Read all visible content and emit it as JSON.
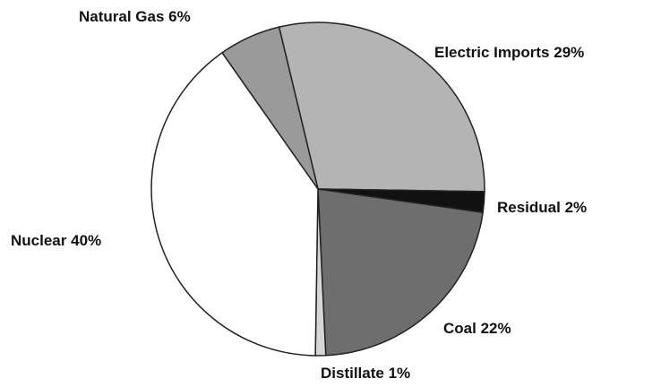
{
  "chart_data": {
    "type": "pie",
    "categories": [
      "Electric Imports",
      "Residual",
      "Coal",
      "Distillate",
      "Nuclear",
      "Natural Gas"
    ],
    "values": [
      29,
      2,
      22,
      1,
      40,
      6
    ],
    "value_labels": [
      "29%",
      "2%",
      "22%",
      "1%",
      "40%",
      "6%"
    ],
    "colors": [
      "#b4b4b4",
      "#111111",
      "#6e6e6e",
      "#d6d6d6",
      "#ffffff",
      "#9a9a9a"
    ]
  }
}
